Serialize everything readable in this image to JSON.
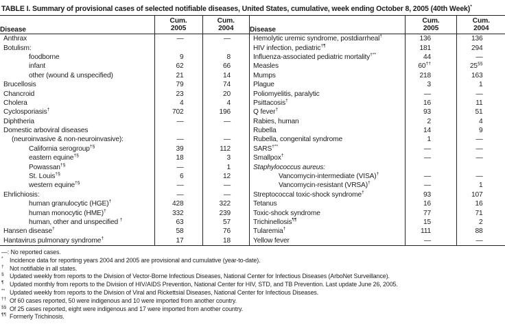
{
  "title": {
    "text": "TABLE I. Summary of provisional cases of selected notifiable diseases, United States, cumulative, week ending October 8, 2005 (40th Week)",
    "sup": "*"
  },
  "header": {
    "disease": "Disease",
    "cum_label": "Cum.",
    "year_2005": "2005",
    "year_2004": "2004"
  },
  "left_rows": [
    {
      "d": "Anthrax",
      "sup": "",
      "ind": 0,
      "it": false,
      "v1": "—",
      "v1s": "",
      "v2": "—",
      "v2s": ""
    },
    {
      "d": "Botulism:",
      "sup": "",
      "ind": 0,
      "it": false,
      "v1": "",
      "v1s": "",
      "v2": "",
      "v2s": ""
    },
    {
      "d": "foodborne",
      "sup": "",
      "ind": 2,
      "it": false,
      "v1": "9",
      "v1s": "",
      "v2": "8",
      "v2s": ""
    },
    {
      "d": "infant",
      "sup": "",
      "ind": 2,
      "it": false,
      "v1": "62",
      "v1s": "",
      "v2": "66",
      "v2s": ""
    },
    {
      "d": "other (wound & unspecified)",
      "sup": "",
      "ind": 2,
      "it": false,
      "v1": "21",
      "v1s": "",
      "v2": "14",
      "v2s": ""
    },
    {
      "d": "Brucellosis",
      "sup": "",
      "ind": 0,
      "it": false,
      "v1": "79",
      "v1s": "",
      "v2": "74",
      "v2s": ""
    },
    {
      "d": "Chancroid",
      "sup": "",
      "ind": 0,
      "it": false,
      "v1": "23",
      "v1s": "",
      "v2": "20",
      "v2s": ""
    },
    {
      "d": "Cholera",
      "sup": "",
      "ind": 0,
      "it": false,
      "v1": "4",
      "v1s": "",
      "v2": "4",
      "v2s": ""
    },
    {
      "d": "Cyclosporiasis",
      "sup": "†",
      "ind": 0,
      "it": false,
      "v1": "702",
      "v1s": "",
      "v2": "196",
      "v2s": ""
    },
    {
      "d": "Diphtheria",
      "sup": "",
      "ind": 0,
      "it": false,
      "v1": "—",
      "v1s": "",
      "v2": "—",
      "v2s": ""
    },
    {
      "d": "Domestic arboviral diseases",
      "sup": "",
      "ind": 0,
      "it": false,
      "v1": "",
      "v1s": "",
      "v2": "",
      "v2s": ""
    },
    {
      "d": "(neuroinvasive & non-neuroinvasive):",
      "sup": "",
      "ind": 1,
      "it": false,
      "v1": "—",
      "v1s": "",
      "v2": "—",
      "v2s": ""
    },
    {
      "d": "California serogroup",
      "sup": "†§",
      "ind": 2,
      "it": false,
      "v1": "39",
      "v1s": "",
      "v2": "112",
      "v2s": ""
    },
    {
      "d": "eastern equine",
      "sup": "†§",
      "ind": 2,
      "it": false,
      "v1": "18",
      "v1s": "",
      "v2": "3",
      "v2s": ""
    },
    {
      "d": "Powassan",
      "sup": "†§",
      "ind": 2,
      "it": false,
      "v1": "—",
      "v1s": "",
      "v2": "1",
      "v2s": ""
    },
    {
      "d": "St. Louis",
      "sup": "†§",
      "ind": 2,
      "it": false,
      "v1": "6",
      "v1s": "",
      "v2": "12",
      "v2s": ""
    },
    {
      "d": "western equine",
      "sup": "†§",
      "ind": 2,
      "it": false,
      "v1": "—",
      "v1s": "",
      "v2": "—",
      "v2s": ""
    },
    {
      "d": "Ehrlichiosis:",
      "sup": "",
      "ind": 0,
      "it": false,
      "v1": "—",
      "v1s": "",
      "v2": "—",
      "v2s": ""
    },
    {
      "d": "human granulocytic (HGE)",
      "sup": "†",
      "ind": 2,
      "it": false,
      "v1": "428",
      "v1s": "",
      "v2": "322",
      "v2s": ""
    },
    {
      "d": "human monocytic (HME)",
      "sup": "†",
      "ind": 2,
      "it": false,
      "v1": "332",
      "v1s": "",
      "v2": "239",
      "v2s": ""
    },
    {
      "d": "human, other and unspecified ",
      "sup": "†",
      "ind": 2,
      "it": false,
      "v1": "63",
      "v1s": "",
      "v2": "57",
      "v2s": ""
    },
    {
      "d": "Hansen disease",
      "sup": "†",
      "ind": 0,
      "it": false,
      "v1": "58",
      "v1s": "",
      "v2": "76",
      "v2s": ""
    },
    {
      "d": "Hantavirus pulmonary syndrome",
      "sup": "†",
      "ind": 0,
      "it": false,
      "v1": "17",
      "v1s": "",
      "v2": "18",
      "v2s": ""
    }
  ],
  "right_rows": [
    {
      "d": "Hemolytic uremic syndrome, postdiarrheal",
      "sup": "†",
      "ind": 0,
      "it": false,
      "v1": "136",
      "v1s": "",
      "v2": "136",
      "v2s": ""
    },
    {
      "d": "HIV infection, pediatric",
      "sup": "†¶",
      "ind": 0,
      "it": false,
      "v1": "181",
      "v1s": "",
      "v2": "294",
      "v2s": ""
    },
    {
      "d": "Influenza-associated pediatric mortality",
      "sup": "†**",
      "ind": 0,
      "it": false,
      "v1": "44",
      "v1s": "",
      "v2": "—",
      "v2s": ""
    },
    {
      "d": "Measles",
      "sup": "",
      "ind": 0,
      "it": false,
      "v1": "60",
      "v1s": "††",
      "v2": "25",
      "v2s": "§§"
    },
    {
      "d": "Mumps",
      "sup": "",
      "ind": 0,
      "it": false,
      "v1": "218",
      "v1s": "",
      "v2": "163",
      "v2s": ""
    },
    {
      "d": "Plague",
      "sup": "",
      "ind": 0,
      "it": false,
      "v1": "3",
      "v1s": "",
      "v2": "1",
      "v2s": ""
    },
    {
      "d": "Poliomyelitis, paralytic",
      "sup": "",
      "ind": 0,
      "it": false,
      "v1": "—",
      "v1s": "",
      "v2": "—",
      "v2s": ""
    },
    {
      "d": "Psittacosis",
      "sup": "†",
      "ind": 0,
      "it": false,
      "v1": "16",
      "v1s": "",
      "v2": "11",
      "v2s": ""
    },
    {
      "d": "Q fever",
      "sup": "†",
      "ind": 0,
      "it": false,
      "v1": "93",
      "v1s": "",
      "v2": "51",
      "v2s": ""
    },
    {
      "d": "Rabies, human",
      "sup": "",
      "ind": 0,
      "it": false,
      "v1": "2",
      "v1s": "",
      "v2": "4",
      "v2s": ""
    },
    {
      "d": "Rubella",
      "sup": "",
      "ind": 0,
      "it": false,
      "v1": "14",
      "v1s": "",
      "v2": "9",
      "v2s": ""
    },
    {
      "d": "Rubella, congenital syndrome",
      "sup": "",
      "ind": 0,
      "it": false,
      "v1": "1",
      "v1s": "",
      "v2": "—",
      "v2s": ""
    },
    {
      "d": "SARS",
      "sup": "†**",
      "ind": 0,
      "it": false,
      "v1": "—",
      "v1s": "",
      "v2": "—",
      "v2s": ""
    },
    {
      "d": "Smallpox",
      "sup": "†",
      "ind": 0,
      "it": false,
      "v1": "—",
      "v1s": "",
      "v2": "—",
      "v2s": ""
    },
    {
      "d": "Staphylococcus aureus:",
      "sup": "",
      "ind": 0,
      "it": true,
      "v1": "",
      "v1s": "",
      "v2": "",
      "v2s": ""
    },
    {
      "d": "Vancomycin-intermediate (VISA)",
      "sup": "†",
      "ind": 2,
      "it": false,
      "v1": "—",
      "v1s": "",
      "v2": "—",
      "v2s": ""
    },
    {
      "d": "Vancomycin-resistant (VRSA)",
      "sup": "†",
      "ind": 2,
      "it": false,
      "v1": "—",
      "v1s": "",
      "v2": "1",
      "v2s": ""
    },
    {
      "d": "Streptococcal toxic-shock syndrome",
      "sup": "†",
      "ind": 0,
      "it": false,
      "v1": "93",
      "v1s": "",
      "v2": "107",
      "v2s": ""
    },
    {
      "d": "Tetanus",
      "sup": "",
      "ind": 0,
      "it": false,
      "v1": "16",
      "v1s": "",
      "v2": "16",
      "v2s": ""
    },
    {
      "d": "Toxic-shock syndrome",
      "sup": "",
      "ind": 0,
      "it": false,
      "v1": "77",
      "v1s": "",
      "v2": "71",
      "v2s": ""
    },
    {
      "d": "Trichinellosis",
      "sup": "¶¶",
      "ind": 0,
      "it": false,
      "v1": "15",
      "v1s": "",
      "v2": "2",
      "v2s": ""
    },
    {
      "d": "Tularemia",
      "sup": "†",
      "ind": 0,
      "it": false,
      "v1": "111",
      "v1s": "",
      "v2": "88",
      "v2s": ""
    },
    {
      "d": "Yellow fever",
      "sup": "",
      "ind": 0,
      "it": false,
      "v1": "—",
      "v1s": "",
      "v2": "—",
      "v2s": ""
    }
  ],
  "footnotes": [
    {
      "marker": "—:",
      "inline": true,
      "text": "No reported cases."
    },
    {
      "marker": "*",
      "inline": false,
      "text": "Incidence data for reporting years 2004 and 2005 are provisional and cumulative (year-to-date)."
    },
    {
      "marker": "†",
      "inline": false,
      "text": "Not notifiable in all states."
    },
    {
      "marker": "§",
      "inline": false,
      "text": "Updated weekly from reports to the Division of Vector-Borne Infectious Diseases, National Center for Infectious Diseases (ArboNet Surveillance)."
    },
    {
      "marker": "¶",
      "inline": false,
      "text": "Updated monthly from reports to the Division of HIV/AIDS Prevention, National Center for HIV, STD, and TB Prevention. Last update June 26, 2005."
    },
    {
      "marker": "**",
      "inline": false,
      "text": "Updated weekly from reports to the Division of Viral and Rickettsial Diseases, National Center for Infectious Diseases."
    },
    {
      "marker": "††",
      "inline": false,
      "text": "Of 60 cases reported, 50 were indigenous and 10 were imported from another country."
    },
    {
      "marker": "§§",
      "inline": false,
      "text": "Of 25 cases reported, eight were indigenous and 17 were imported from another country."
    },
    {
      "marker": "¶¶",
      "inline": false,
      "text": "Formerly Trichinosis."
    }
  ]
}
